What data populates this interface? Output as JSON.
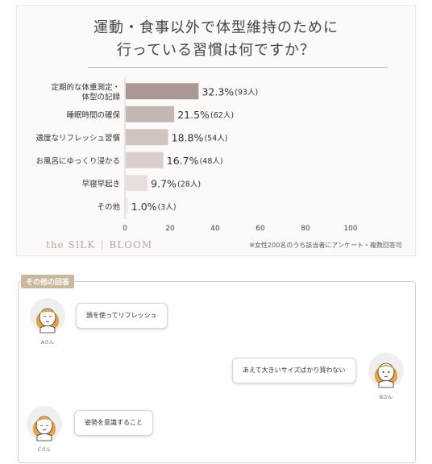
{
  "chart": {
    "title_line1": "運動・食事以外で体型維持のために",
    "title_line2": "行っている習慣は何ですか？",
    "brand_left": "the SILK",
    "brand_right": "BLOOM",
    "footnote": "※女性200名のうち該当者にアンケート・複数回答可"
  },
  "chart_data": {
    "type": "bar",
    "orientation": "horizontal",
    "categories": [
      [
        "定期的な体重測定・",
        "体型の記録"
      ],
      [
        "睡眠時間の確保"
      ],
      [
        "適度なリフレッシュ習慣"
      ],
      [
        "お風呂にゆっくり浸かる"
      ],
      [
        "早寝早起き"
      ],
      [
        "その他"
      ]
    ],
    "values": [
      32.3,
      21.5,
      18.8,
      16.7,
      9.7,
      1.0
    ],
    "value_labels": [
      "32.3%",
      "21.5%",
      "18.8%",
      "16.7%",
      "9.7%",
      "1.0%"
    ],
    "count_labels": [
      "(93人)",
      "(62人)",
      "(54人)",
      "(48人)",
      "(28人)",
      "(3人)"
    ],
    "xlim": [
      0,
      100
    ],
    "xticks": [
      "0",
      "20",
      "40",
      "60",
      "80",
      "100"
    ],
    "bar_colors": [
      "#a99894",
      "#c4b6b2",
      "#cfc4c0",
      "#d9d0cd",
      "#e6dfdd",
      "#eee9e7"
    ]
  },
  "other": {
    "label": "その他の回答",
    "items": [
      {
        "name": "Aさん",
        "text": "頭を使ってリフレッシュ"
      },
      {
        "name": "Bさん",
        "text": "あえて大きいサイズばかり買わない"
      },
      {
        "name": "Cさん",
        "text": "姿勢を意識すること"
      }
    ]
  }
}
